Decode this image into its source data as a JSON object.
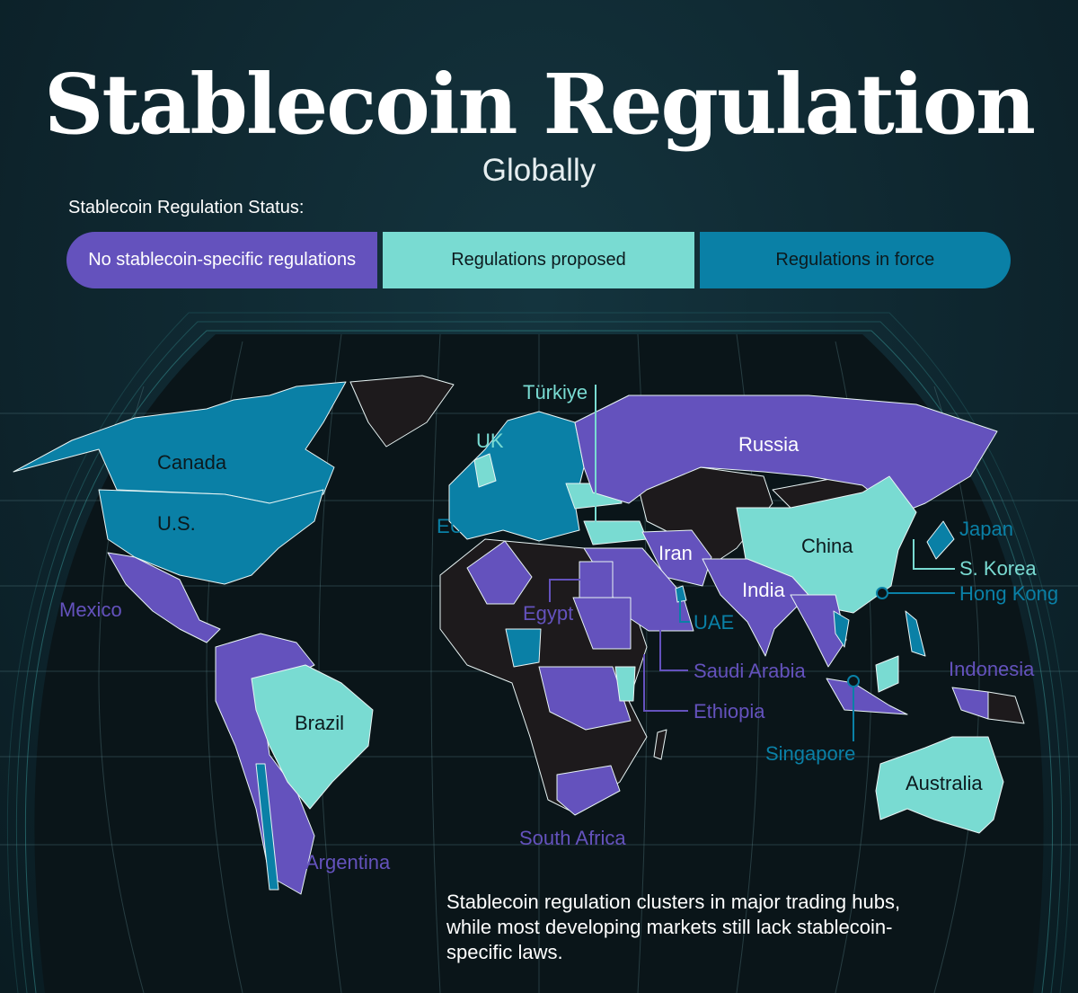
{
  "title": "Stablecoin Regulation",
  "subtitle": "Globally",
  "legend": {
    "title": "Stablecoin Regulation Status:",
    "items": [
      {
        "label": "No stablecoin-specific regulations",
        "color": "#6452bd"
      },
      {
        "label": "Regulations proposed",
        "color": "#79dbd2"
      },
      {
        "label": "Regulations in force",
        "color": "#0a80a6"
      }
    ]
  },
  "map": {
    "no_data_color": "#1d1a1c",
    "labels": {
      "canada": "Canada",
      "us": "U.S.",
      "mexico": "Mexico",
      "brazil": "Brazil",
      "argentina": "Argentina",
      "uk": "UK",
      "eu": "EU",
      "turkiye": "Türkiye",
      "russia": "Russia",
      "iran": "Iran",
      "china": "China",
      "india": "India",
      "egypt": "Egypt",
      "uae": "UAE",
      "saudi_arabia": "Saudi Arabia",
      "ethiopia": "Ethiopia",
      "south_africa": "South Africa",
      "japan": "Japan",
      "s_korea": "S. Korea",
      "hong_kong": "Hong Kong",
      "indonesia": "Indonesia",
      "singapore": "Singapore",
      "australia": "Australia"
    }
  },
  "caption": "Stablecoin regulation clusters in major trading hubs, while most developing markets still lack stablecoin-specific laws."
}
